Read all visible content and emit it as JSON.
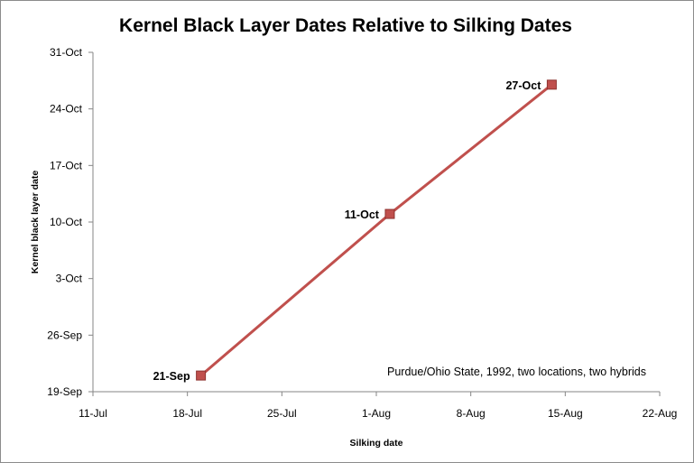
{
  "chart_data": {
    "type": "line",
    "title": "Kernel Black Layer Dates Relative to Silking Dates",
    "xlabel": "Silking date",
    "ylabel": "Kernel black layer date",
    "x_tick_labels": [
      "11-Jul",
      "18-Jul",
      "25-Jul",
      "1-Aug",
      "8-Aug",
      "15-Aug",
      "22-Aug"
    ],
    "y_tick_labels": [
      "19-Sep",
      "26-Sep",
      "3-Oct",
      "10-Oct",
      "17-Oct",
      "24-Oct",
      "31-Oct"
    ],
    "x": [
      "1992-07-19",
      "1992-08-02",
      "1992-08-14"
    ],
    "y": [
      "1992-09-21",
      "1992-10-11",
      "1992-10-27"
    ],
    "point_labels": [
      "21-Sep",
      "11-Oct",
      "27-Oct"
    ],
    "xlim": [
      "1992-07-11",
      "1992-08-22"
    ],
    "ylim": [
      "1992-09-19",
      "1992-10-31"
    ],
    "series_color": "#c0504d",
    "marker_color": "#c0504d",
    "marker_edge": "#8e3330",
    "annotation": "Purdue/Ohio State, 1992, two locations, two hybrids",
    "grid": false,
    "legend": "none"
  }
}
